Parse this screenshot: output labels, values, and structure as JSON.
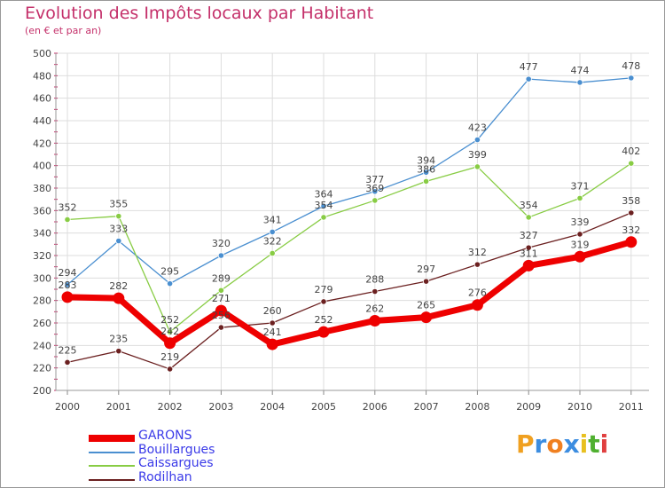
{
  "title": "Evolution des Impôts locaux par Habitant",
  "subtitle": "(en € et par an)",
  "logo": {
    "text": "Proxiti",
    "letters": [
      {
        "ch": "P",
        "color": "#f0a020"
      },
      {
        "ch": "r",
        "color": "#3c8de0"
      },
      {
        "ch": "o",
        "color": "#f08020"
      },
      {
        "ch": "x",
        "color": "#3c8de0"
      },
      {
        "ch": "i",
        "color": "#e8c020"
      },
      {
        "ch": "t",
        "color": "#50b030"
      },
      {
        "ch": "i",
        "color": "#e04040"
      }
    ]
  },
  "chart_data": {
    "type": "line",
    "title": "Evolution des Impôts locaux par Habitant",
    "subtitle": "(en € et par an)",
    "x": [
      "2000",
      "2001",
      "2002",
      "2003",
      "2004",
      "2005",
      "2006",
      "2007",
      "2008",
      "2009",
      "2010",
      "2011"
    ],
    "ylim": [
      200,
      500
    ],
    "yticks": [
      200,
      220,
      240,
      260,
      280,
      300,
      320,
      340,
      360,
      380,
      400,
      420,
      440,
      460,
      480,
      500
    ],
    "grid": true,
    "legend_position": "bottom-left",
    "series": [
      {
        "name": "GARONS",
        "color": "#ee0000",
        "values": [
          283,
          282,
          242,
          271,
          241,
          252,
          262,
          265,
          276,
          311,
          319,
          332
        ]
      },
      {
        "name": "Bouillargues",
        "color": "#4a8fd0",
        "values": [
          294,
          333,
          295,
          320,
          341,
          364,
          377,
          394,
          423,
          477,
          474,
          478
        ]
      },
      {
        "name": "Caissargues",
        "color": "#88cc44",
        "values": [
          352,
          355,
          252,
          289,
          322,
          354,
          369,
          386,
          399,
          354,
          371,
          402
        ]
      },
      {
        "name": "Rodilhan",
        "color": "#6b2020",
        "values": [
          225,
          235,
          219,
          256,
          260,
          279,
          288,
          297,
          312,
          327,
          339,
          358
        ]
      }
    ]
  }
}
